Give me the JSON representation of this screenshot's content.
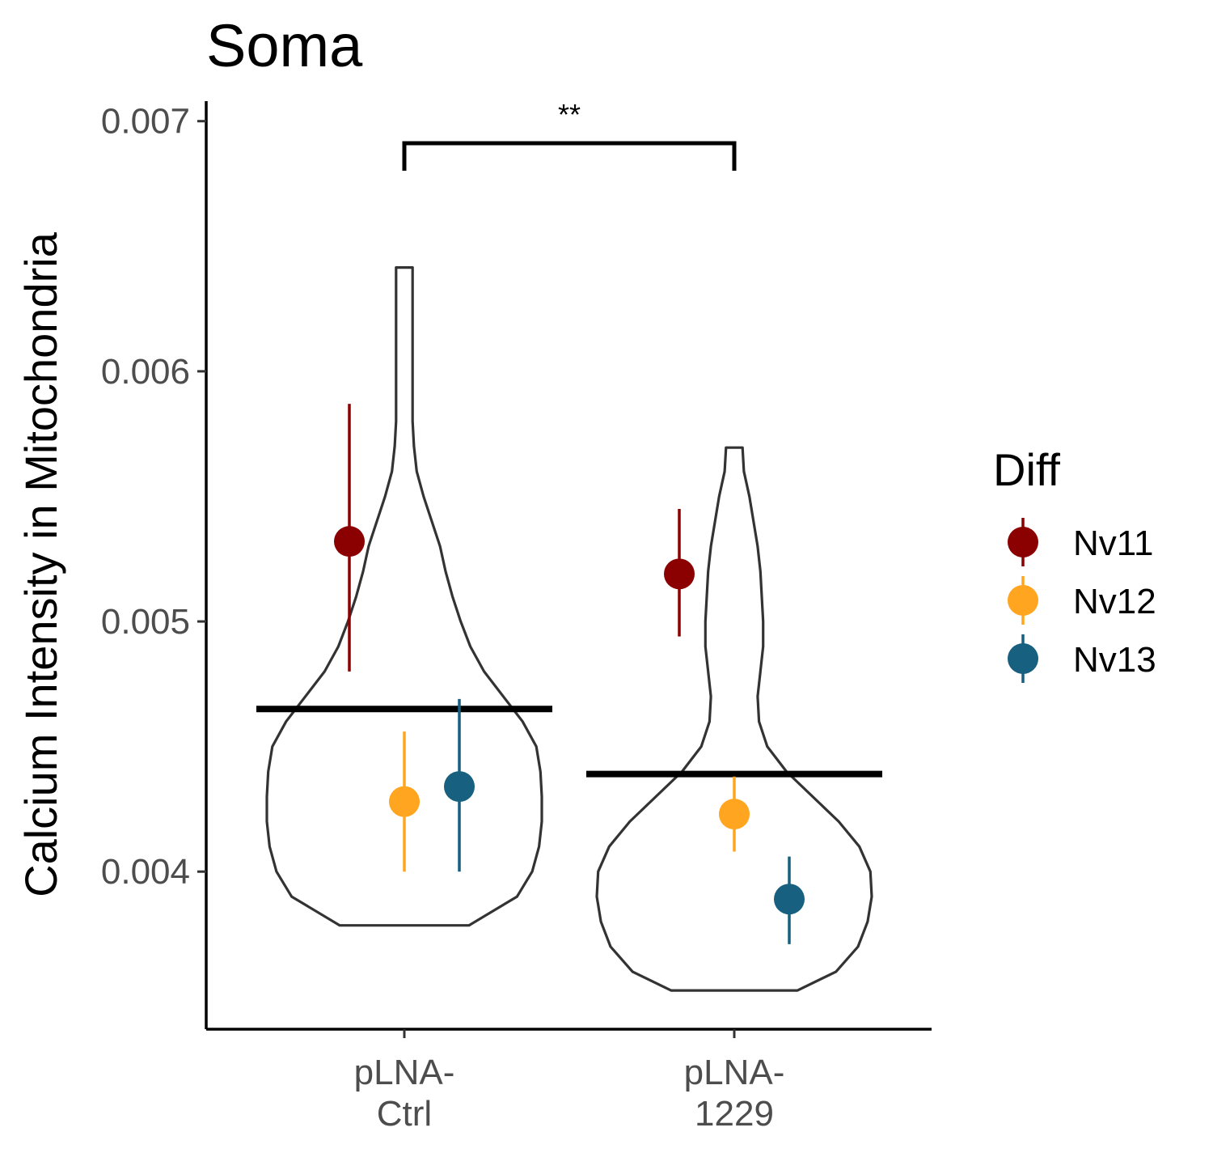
{
  "chart_data": {
    "type": "violin",
    "title": "Soma",
    "xlabel": "",
    "ylabel": "Calcium Intensity in Mitochondria",
    "ylim": [
      0.00337,
      0.00708
    ],
    "yticks": [
      0.004,
      0.005,
      0.006,
      0.007
    ],
    "ytick_labels": [
      "0.004",
      "0.005",
      "0.006",
      "0.007"
    ],
    "categories": [
      {
        "id": "ctrl",
        "lines": [
          "pLNA-",
          "Ctrl"
        ]
      },
      {
        "id": "1229",
        "lines": [
          "pLNA-",
          "1229"
        ]
      }
    ],
    "group_means": [
      0.00465,
      0.00439
    ],
    "significance": {
      "groups": [
        "ctrl",
        "1229"
      ],
      "label": "**"
    },
    "legend": {
      "title": "Diff",
      "position": "right"
    },
    "series": [
      {
        "name": "Nv11",
        "color": "#8b0000",
        "points": [
          {
            "category": "ctrl",
            "y": 0.00532,
            "ymin": 0.0048,
            "ymax": 0.00587
          },
          {
            "category": "1229",
            "y": 0.00519,
            "ymin": 0.00494,
            "ymax": 0.00545
          }
        ]
      },
      {
        "name": "Nv12",
        "color": "#ffa51f",
        "points": [
          {
            "category": "ctrl",
            "y": 0.00428,
            "ymin": 0.004,
            "ymax": 0.00456
          },
          {
            "category": "1229",
            "y": 0.00423,
            "ymin": 0.00408,
            "ymax": 0.00438
          }
        ]
      },
      {
        "name": "Nv13",
        "color": "#17607f",
        "points": [
          {
            "category": "ctrl",
            "y": 0.00434,
            "ymin": 0.004,
            "ymax": 0.00469
          },
          {
            "category": "1229",
            "y": 0.00389,
            "ymin": 0.00371,
            "ymax": 0.00406
          }
        ]
      }
    ],
    "violins": [
      {
        "category": "ctrl",
        "ymin": 0.003785,
        "ymax": 0.006415,
        "density_profile": [
          [
            0.003785,
            0.47
          ],
          [
            0.0039,
            0.82
          ],
          [
            0.004,
            0.93
          ],
          [
            0.0041,
            0.98
          ],
          [
            0.0042,
            1.0
          ],
          [
            0.0043,
            1.0
          ],
          [
            0.0044,
            0.99
          ],
          [
            0.0045,
            0.96
          ],
          [
            0.0046,
            0.86
          ],
          [
            0.0047,
            0.72
          ],
          [
            0.0048,
            0.58
          ],
          [
            0.0049,
            0.48
          ],
          [
            0.005,
            0.41
          ],
          [
            0.0051,
            0.35
          ],
          [
            0.0052,
            0.3
          ],
          [
            0.0053,
            0.26
          ],
          [
            0.0054,
            0.2
          ],
          [
            0.0055,
            0.14
          ],
          [
            0.0056,
            0.09
          ],
          [
            0.0057,
            0.07
          ],
          [
            0.0058,
            0.06
          ],
          [
            0.0059,
            0.06
          ],
          [
            0.006,
            0.06
          ],
          [
            0.0061,
            0.06
          ],
          [
            0.0062,
            0.06
          ],
          [
            0.0063,
            0.06
          ],
          [
            0.006415,
            0.06
          ]
        ]
      },
      {
        "category": "1229",
        "ymin": 0.003525,
        "ymax": 0.005695,
        "density_profile": [
          [
            0.003525,
            0.46
          ],
          [
            0.0036,
            0.74
          ],
          [
            0.0037,
            0.9
          ],
          [
            0.0038,
            0.97
          ],
          [
            0.0039,
            1.0
          ],
          [
            0.004,
            0.99
          ],
          [
            0.0041,
            0.91
          ],
          [
            0.0042,
            0.76
          ],
          [
            0.0043,
            0.57
          ],
          [
            0.0044,
            0.38
          ],
          [
            0.0045,
            0.24
          ],
          [
            0.0046,
            0.18
          ],
          [
            0.0047,
            0.17
          ],
          [
            0.0048,
            0.19
          ],
          [
            0.0049,
            0.21
          ],
          [
            0.005,
            0.21
          ],
          [
            0.0051,
            0.2
          ],
          [
            0.0052,
            0.19
          ],
          [
            0.0053,
            0.17
          ],
          [
            0.0054,
            0.14
          ],
          [
            0.0055,
            0.11
          ],
          [
            0.0056,
            0.07
          ],
          [
            0.005695,
            0.06
          ]
        ]
      }
    ]
  }
}
